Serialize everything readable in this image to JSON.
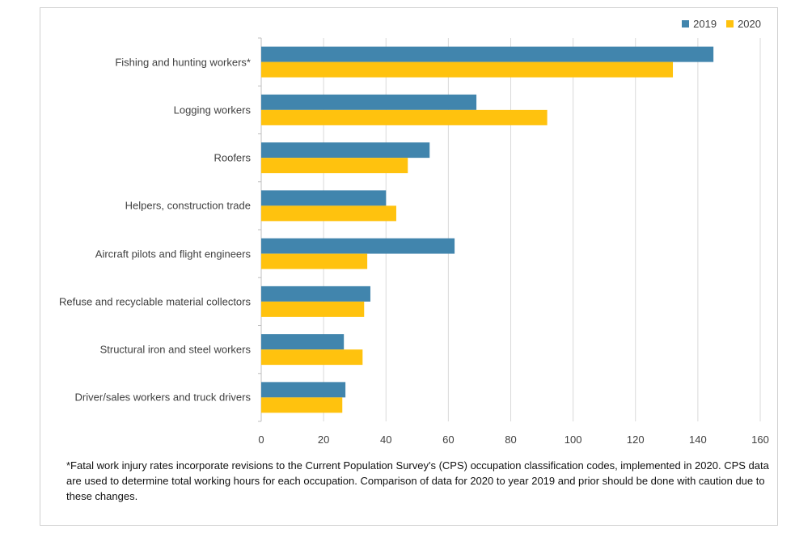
{
  "chart_data": {
    "type": "bar",
    "orientation": "horizontal",
    "categories": [
      "Fishing and hunting workers*",
      "Logging workers",
      "Roofers",
      "Helpers, construction trade",
      "Aircraft pilots and flight engineers",
      "Refuse and recyclable material collectors",
      "Structural iron and steel workers",
      "Driver/sales workers and truck drivers"
    ],
    "series": [
      {
        "name": "2019",
        "color": "#4185ad",
        "values": [
          145,
          69,
          54,
          40,
          62,
          35,
          26.5,
          27
        ]
      },
      {
        "name": "2020",
        "color": "#ffc20e",
        "values": [
          132,
          91.7,
          47,
          43.3,
          34,
          33,
          32.5,
          26
        ]
      }
    ],
    "xlim": [
      0,
      160
    ],
    "xticks": [
      "0",
      "20",
      "40",
      "60",
      "80",
      "100",
      "120",
      "140",
      "160"
    ],
    "grid": true,
    "legend_position": "top-right"
  },
  "footnote": "*Fatal work injury rates incorporate revisions to the Current Population Survey's (CPS) occupation classification codes, implemented in 2020. CPS data are used to determine total working hours for each occupation. Comparison of data for 2020 to year 2019 and prior should be done with caution due to these changes."
}
